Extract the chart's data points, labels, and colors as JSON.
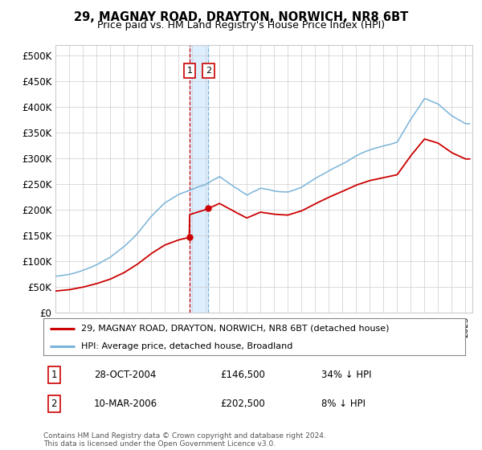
{
  "title": "29, MAGNAY ROAD, DRAYTON, NORWICH, NR8 6BT",
  "subtitle": "Price paid vs. HM Land Registry's House Price Index (HPI)",
  "ylabel_ticks": [
    "£0",
    "£50K",
    "£100K",
    "£150K",
    "£200K",
    "£250K",
    "£300K",
    "£350K",
    "£400K",
    "£450K",
    "£500K"
  ],
  "ytick_values": [
    0,
    50000,
    100000,
    150000,
    200000,
    250000,
    300000,
    350000,
    400000,
    450000,
    500000
  ],
  "xlim_start": 1995.0,
  "xlim_end": 2025.5,
  "ylim": [
    0,
    520000
  ],
  "sale1_x": 2004.82,
  "sale1_price": 146500,
  "sale1_label": "1",
  "sale2_x": 2006.19,
  "sale2_price": 202500,
  "sale2_label": "2",
  "legend_line1": "29, MAGNAY ROAD, DRAYTON, NORWICH, NR8 6BT (detached house)",
  "legend_line2": "HPI: Average price, detached house, Broadland",
  "table_row1_num": "1",
  "table_row1_date": "28-OCT-2004",
  "table_row1_price": "£146,500",
  "table_row1_hpi": "34% ↓ HPI",
  "table_row2_num": "2",
  "table_row2_date": "10-MAR-2006",
  "table_row2_price": "£202,500",
  "table_row2_hpi": "8% ↓ HPI",
  "footer": "Contains HM Land Registry data © Crown copyright and database right 2024.\nThis data is licensed under the Open Government Licence v3.0.",
  "line_color_sold": "#cc0000",
  "line_color_hpi": "#7ab3d8",
  "shade_color": "#ddeeff",
  "grid_color": "#cccccc",
  "background_color": "#ffffff",
  "hpi_years": [
    1995,
    1996,
    1997,
    1998,
    1999,
    2000,
    2001,
    2002,
    2003,
    2004,
    2005,
    2006,
    2007,
    2008,
    2009,
    2010,
    2011,
    2012,
    2013,
    2014,
    2015,
    2016,
    2017,
    2018,
    2019,
    2020,
    2021,
    2022,
    2023,
    2024,
    2025
  ],
  "hpi_vals": [
    68000,
    72000,
    80000,
    91000,
    105000,
    125000,
    152000,
    185000,
    212000,
    228000,
    238000,
    248000,
    263000,
    245000,
    228000,
    242000,
    237000,
    235000,
    245000,
    262000,
    278000,
    292000,
    307000,
    318000,
    325000,
    332000,
    378000,
    418000,
    408000,
    385000,
    370000
  ]
}
